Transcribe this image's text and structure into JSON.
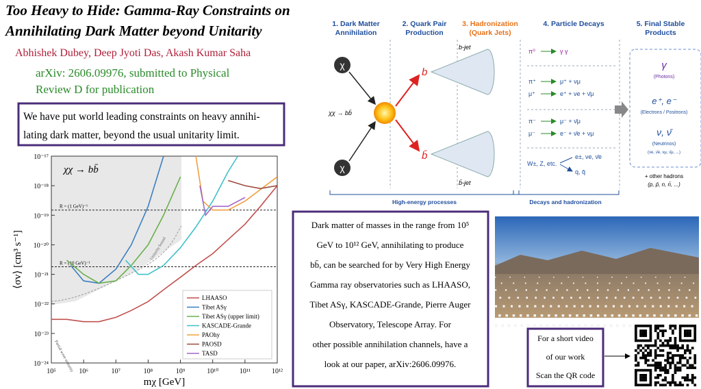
{
  "header": {
    "title": [
      "Too Heavy to Hide: Gamma-Ray Constraints on",
      "Annihilating Dark Matter beyond Unitarity"
    ],
    "authors": "Abhishek Dubey, Deep Jyoti Das, Akash Kumar Saha",
    "arxiv": [
      "arXiv: 2606.09976, submitted to Physical",
      "Review D for publication"
    ]
  },
  "summary": [
    "We have put world leading constraints on heavy annihi-",
    "lating dark matter, beyond the usual unitarity limit."
  ],
  "chart_data": {
    "type": "line",
    "title": "χχ → bb̄",
    "xlabel": "mχ [GeV]",
    "ylabel": "⟨σv⟩ [cm³ s⁻¹]",
    "log_x": true,
    "log_y": true,
    "xlim": [
      100000,
      1000000000000
    ],
    "ylim": [
      1e-24,
      1e-17
    ],
    "xticks": [
      {
        "value": 100000,
        "label": "10⁵"
      },
      {
        "value": 1000000,
        "label": "10⁶"
      },
      {
        "value": 10000000,
        "label": "10⁷"
      },
      {
        "value": 100000000,
        "label": "10⁸"
      },
      {
        "value": 1000000000,
        "label": "10⁹"
      },
      {
        "value": 10000000000,
        "label": "10¹⁰"
      },
      {
        "value": 100000000000,
        "label": "10¹¹"
      },
      {
        "value": 1000000000000,
        "label": "10¹²"
      }
    ],
    "yticks": [
      {
        "value": 1e-24,
        "label": "10⁻²⁴"
      },
      {
        "value": 1e-23,
        "label": "10⁻²³"
      },
      {
        "value": 1e-22,
        "label": "10⁻²²"
      },
      {
        "value": 1e-21,
        "label": "10⁻²¹"
      },
      {
        "value": 1e-20,
        "label": "10⁻²⁰"
      },
      {
        "value": 1e-19,
        "label": "10⁻¹⁹"
      },
      {
        "value": 1e-18,
        "label": "10⁻¹⁸"
      },
      {
        "value": 1e-17,
        "label": "10⁻¹⁷"
      }
    ],
    "annotations": [
      {
        "text": "R = (1 GeV)⁻¹",
        "value": 1.5e-19
      },
      {
        "text": "R = (10 GeV)⁻¹",
        "value": 1.8e-21
      }
    ],
    "region_labels": [
      "Unitarity bound",
      "Partial wave unitarity"
    ],
    "legend": "lower right",
    "series": [
      {
        "name": "LHAASO",
        "color": "#c0504d",
        "x": [
          100000,
          300000,
          1000000,
          3000000,
          10000000,
          30000000,
          100000000,
          300000000,
          1000000000,
          3000000000,
          10000000000,
          30000000000,
          100000000000,
          300000000000,
          1000000000000
        ],
        "values": [
          3e-23,
          3e-23,
          2.5e-23,
          2.5e-23,
          3.5e-23,
          6e-23,
          1.2e-22,
          3e-22,
          8e-22,
          2e-21,
          5e-21,
          1.5e-20,
          5e-20,
          2e-19,
          1e-18
        ]
      },
      {
        "name": "Tibet ASγ",
        "color": "#3c7fc0",
        "x": [
          400000,
          1000000,
          3000000,
          10000000,
          30000000,
          100000000,
          300000000
        ],
        "values": [
          2e-21,
          6e-22,
          5e-22,
          1.5e-21,
          1e-20,
          2e-19,
          1e-17
        ]
      },
      {
        "name": "Tibet ASγ (upper limit)",
        "color": "#6ab04c",
        "x": [
          300000,
          1000000,
          3000000,
          10000000,
          30000000,
          100000000,
          300000000,
          1000000000
        ],
        "values": [
          3e-21,
          1e-21,
          5e-22,
          6e-22,
          2e-21,
          1e-20,
          1e-19,
          2e-18
        ]
      },
      {
        "name": "KASCADE-Grande",
        "color": "#3fc1c9",
        "x": [
          20000000,
          50000000,
          100000000,
          300000000,
          1000000000,
          3000000000,
          10000000000,
          30000000000,
          60000000000
        ],
        "values": [
          3e-21,
          1e-21,
          1e-21,
          2e-21,
          8e-21,
          4e-20,
          3e-19,
          3e-18,
          1e-17
        ]
      },
      {
        "name": "PAOhy",
        "color": "#f0a040",
        "x": [
          3000000000,
          5000000000,
          10000000000,
          30000000000,
          100000000000,
          1000000000000
        ],
        "values": [
          1e-17,
          3e-19,
          1.5e-19,
          1.5e-19,
          3e-19,
          2e-18
        ]
      },
      {
        "name": "PAOSD",
        "color": "#9c4a3c",
        "x": [
          30000000000,
          100000000000,
          300000000000,
          1000000000000
        ],
        "values": [
          1.5e-18,
          1e-18,
          8e-19,
          1e-18
        ]
      },
      {
        "name": "TASD",
        "color": "#a066c8",
        "x": [
          4000000000,
          6000000000,
          10000000000,
          30000000000,
          100000000000
        ],
        "values": [
          1e-18,
          1e-19,
          2e-19,
          2e-19,
          4e-19
        ]
      }
    ]
  },
  "diagram": {
    "steps": [
      [
        "1. Dark Matter",
        "Annihilation"
      ],
      [
        "2. Quark Pair",
        "Production"
      ],
      [
        "3. Hadronization",
        "(Quark Jets)"
      ],
      [
        "4. Particle Decays"
      ],
      [
        "5. Final Stable",
        "Products"
      ]
    ],
    "particles": {
      "chi": "χ",
      "process": "χχ → bb̄",
      "b": "b",
      "bbar": "b̄",
      "bjet": "b-jet",
      "bbarjet": "b̄-jet"
    },
    "decays": [
      [
        "π⁰",
        "γ γ"
      ],
      [
        "π⁺",
        "μ⁺ + νμ"
      ],
      [
        "μ⁺",
        "e⁺ + νe + ν̄μ"
      ],
      [
        "π⁻",
        "μ⁻ + ν̄μ"
      ],
      [
        "μ⁻",
        "e⁻ + ν̄e + νμ"
      ]
    ],
    "heavy": {
      "source": "W±, Z, etc.",
      "products": [
        "e±, νe, ν̄e",
        "q, q̄"
      ]
    },
    "final": [
      [
        "γ",
        "(Photons)"
      ],
      [
        "e⁺, e⁻",
        "(Electrons / Positrons)"
      ],
      [
        "ν, ν̄",
        "(Neutrinos)",
        "(νe, ν̄e, νμ, ν̄μ, ...)"
      ]
    ],
    "other": [
      "+ other hadrons",
      "(p, p̄, n, n̄, ...)"
    ],
    "phases": [
      "High-energy processes",
      "Decays and hadronization"
    ]
  },
  "description": [
    "Dark matter of masses in the range from 10⁵",
    "GeV to 10¹² GeV, annihilating to produce",
    "bb̄, can be searched for by Very High Energy",
    "Gamma ray observatories such as LHAASO,",
    "Tibet ASγ, KASCADE-Grande, Pierre Auger",
    "Observatory, Telescope Array. For",
    "other possible annihilation channels, have a",
    "look at our paper, arXiv:2606.09976."
  ],
  "video_note": [
    "For a short video",
    "of our work",
    "Scan the QR code"
  ]
}
